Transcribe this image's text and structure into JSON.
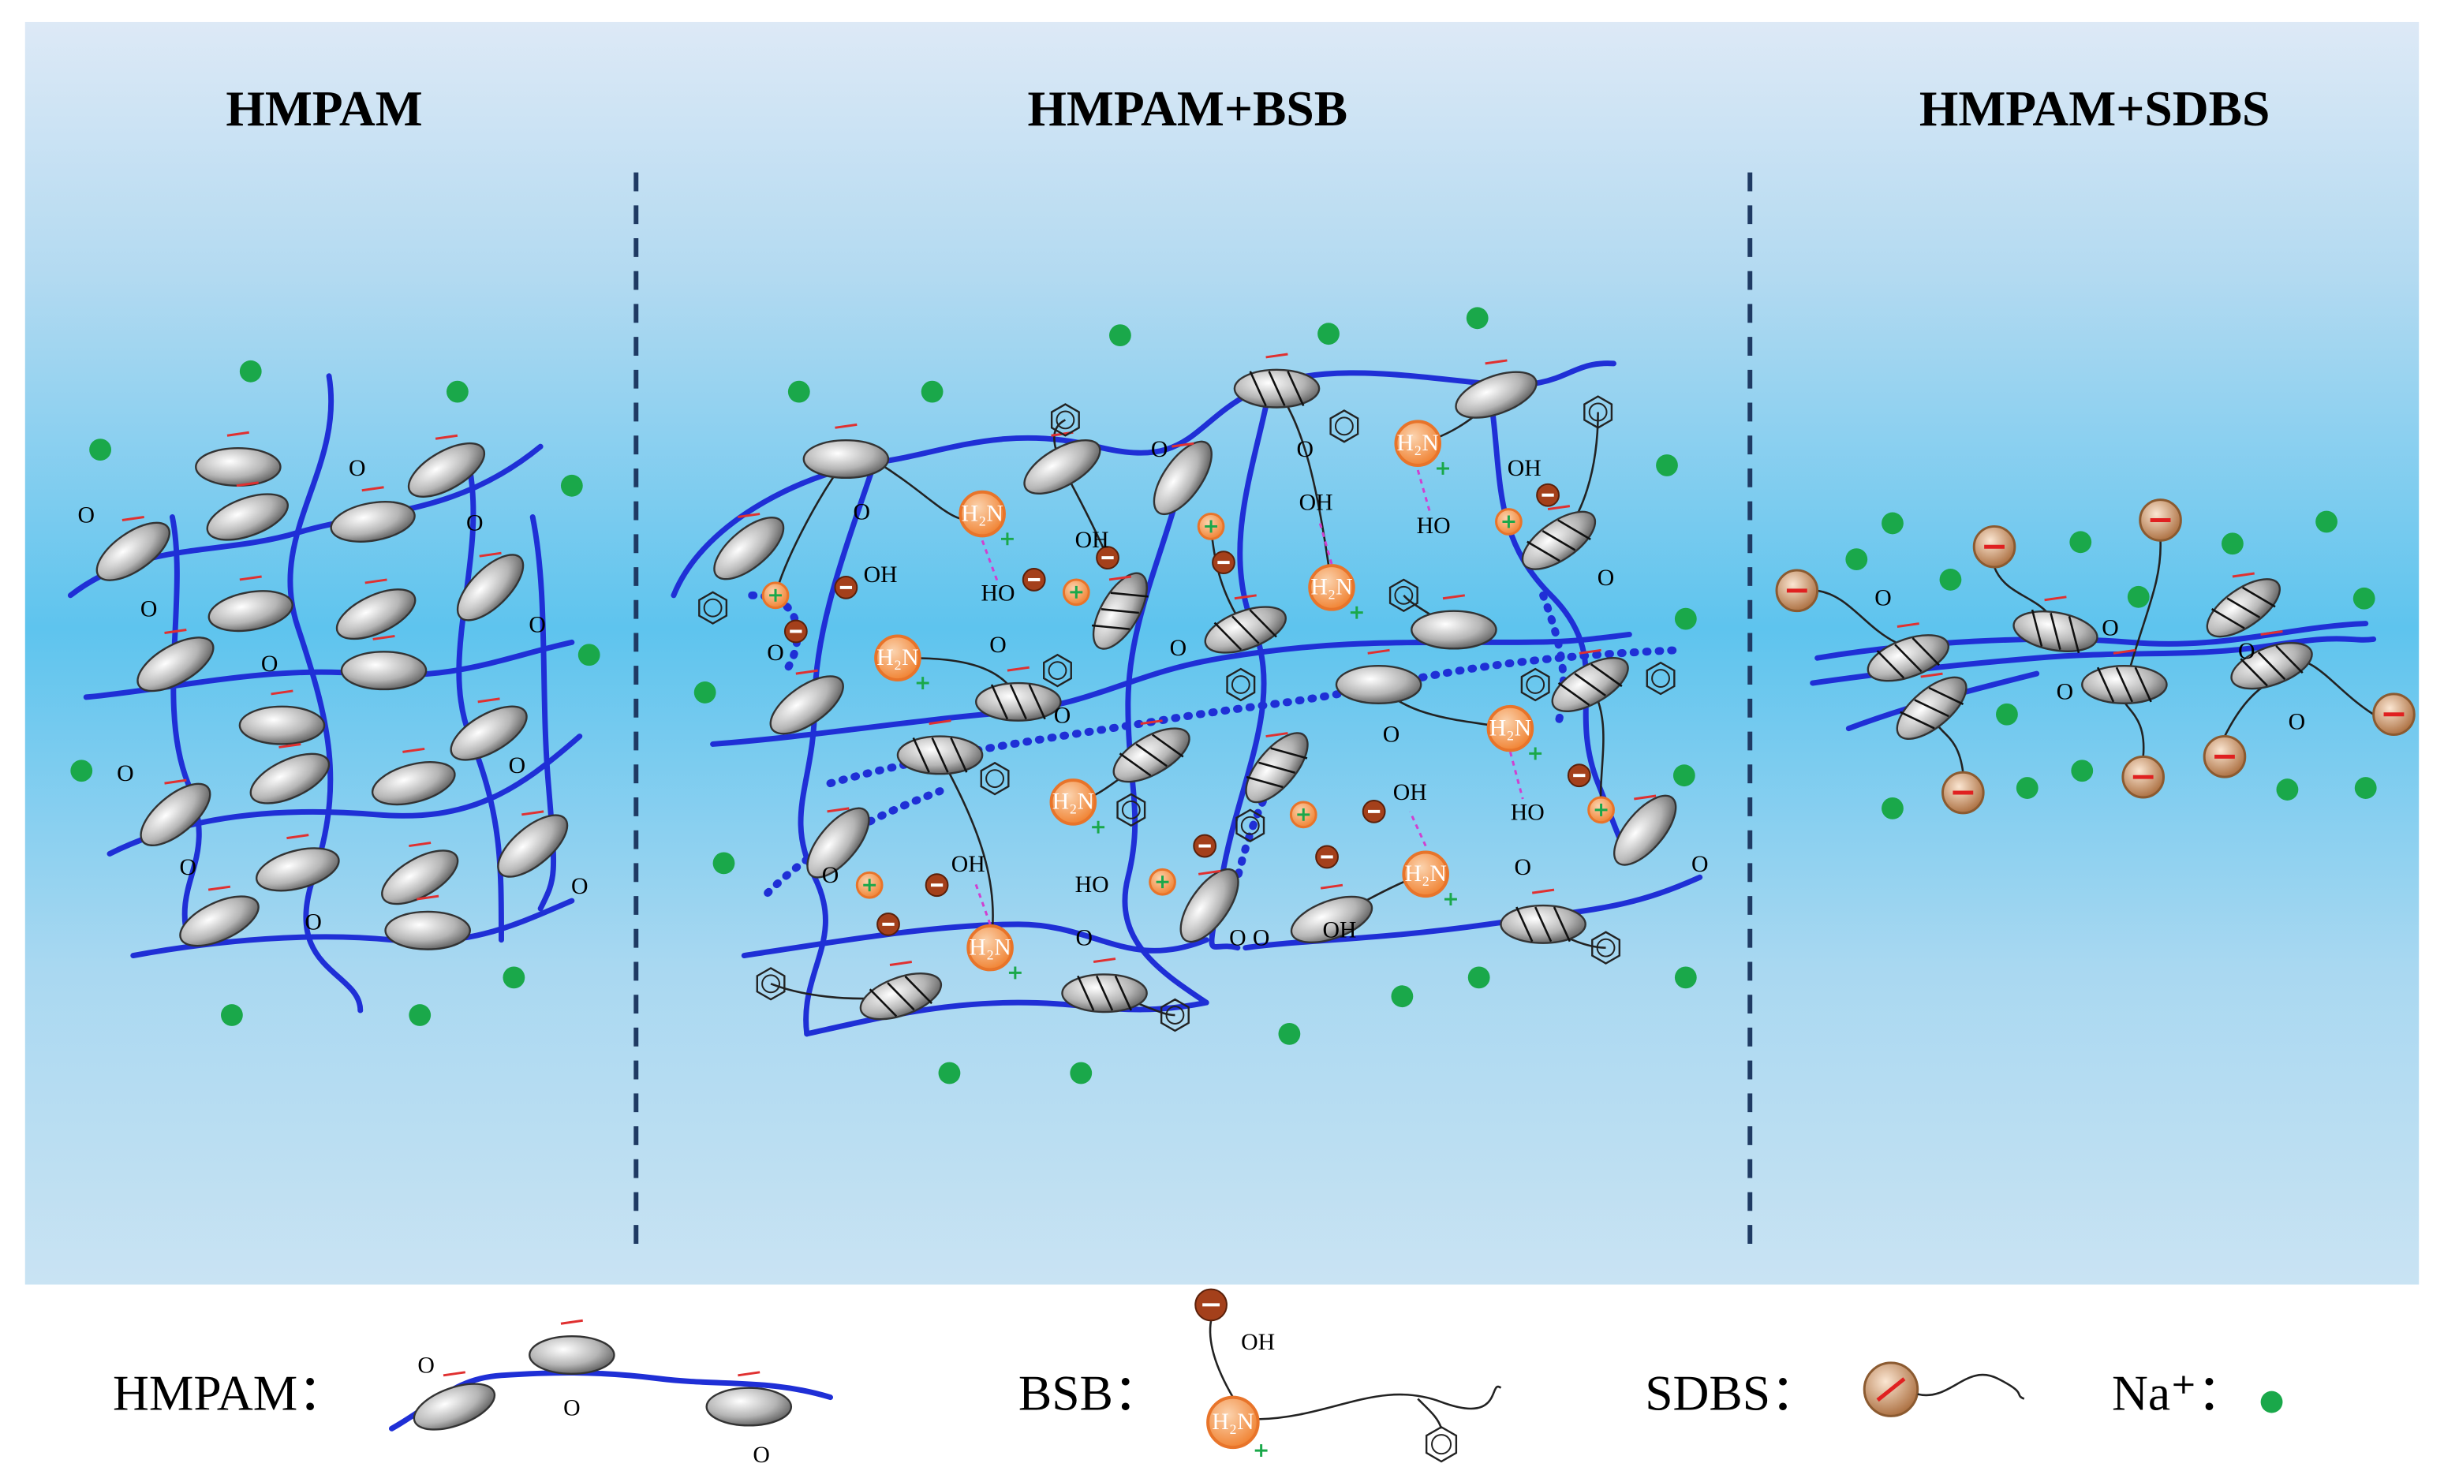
{
  "panels": [
    {
      "title": "HMPAM"
    },
    {
      "title": "HMPAM+BSB"
    },
    {
      "title": "HMPAM+SDBS"
    }
  ],
  "legend": [
    {
      "label": "HMPAM："
    },
    {
      "label": "BSB："
    },
    {
      "label": "SDBS："
    },
    {
      "label": "Na⁺："
    }
  ],
  "labels": {
    "carbonyl": "O",
    "hydroxyl": "OH",
    "hydroxyl_reversed": "HO",
    "amine": "H₂N"
  }
}
